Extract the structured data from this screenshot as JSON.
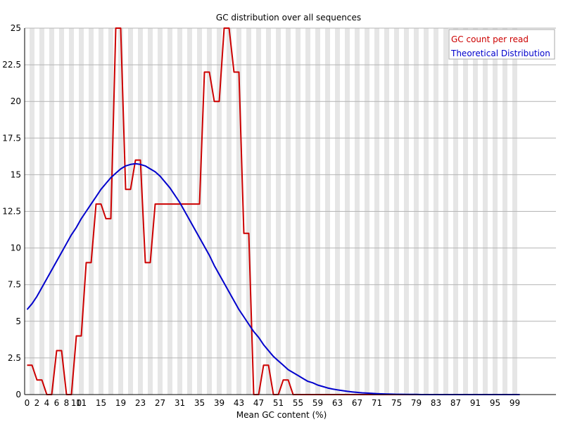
{
  "chart_data": {
    "type": "line",
    "title": "GC distribution over all sequences",
    "xlabel": "Mean GC content (%)",
    "ylabel": "",
    "xlim": [
      0,
      100
    ],
    "ylim": [
      0,
      25
    ],
    "yticks": [
      "0",
      "2.5",
      "5",
      "7.5",
      "10",
      "12.5",
      "15",
      "17.5",
      "20",
      "22.5",
      "25"
    ],
    "xticks": [
      "0",
      "2",
      "4",
      "6",
      "8",
      "10",
      "11",
      "15",
      "19",
      "23",
      "27",
      "31",
      "35",
      "39",
      "43",
      "47",
      "51",
      "55",
      "59",
      "63",
      "67",
      "71",
      "75",
      "79",
      "83",
      "87",
      "91",
      "95",
      "99"
    ],
    "grid": true,
    "legend_position": "top-right",
    "x": [
      0,
      1,
      2,
      3,
      4,
      5,
      6,
      7,
      8,
      9,
      10,
      11,
      12,
      13,
      14,
      15,
      16,
      17,
      18,
      19,
      20,
      21,
      22,
      23,
      24,
      25,
      26,
      27,
      28,
      29,
      30,
      31,
      32,
      33,
      34,
      35,
      36,
      37,
      38,
      39,
      40,
      41,
      42,
      43,
      44,
      45,
      46,
      47,
      48,
      49,
      50,
      51,
      52,
      53,
      54,
      55,
      56,
      57,
      58,
      59,
      60,
      61,
      62,
      63,
      64,
      65,
      66,
      67,
      68,
      69,
      70,
      71,
      72,
      73,
      74,
      75,
      76,
      77,
      78,
      79,
      80,
      81,
      82,
      83,
      84,
      85,
      86,
      87,
      88,
      89,
      90,
      91,
      92,
      93,
      94,
      95,
      96,
      97,
      98,
      99,
      100
    ],
    "series": [
      {
        "name": "GC count per read",
        "color": "#cc0000",
        "values": [
          2,
          2,
          1,
          1,
          0,
          0,
          3,
          3,
          0,
          0,
          4,
          4,
          9,
          9,
          13,
          13,
          12,
          12,
          25,
          25,
          14,
          14,
          16,
          16,
          9,
          9,
          13,
          13,
          13,
          13,
          13,
          13,
          13,
          13,
          13,
          13,
          22,
          22,
          20,
          20,
          25,
          25,
          22,
          22,
          11,
          11,
          0,
          0,
          2,
          2,
          0,
          0,
          1,
          1,
          0,
          0,
          0,
          0,
          0,
          0,
          0,
          0,
          0,
          0,
          0,
          0,
          0,
          0,
          0,
          0,
          0,
          0,
          0,
          0,
          0,
          0,
          0,
          0,
          0,
          0,
          0,
          0,
          0,
          0,
          0,
          0,
          0,
          0,
          0,
          0,
          0,
          0,
          0,
          0,
          0,
          0,
          0,
          0,
          0,
          0,
          0
        ]
      },
      {
        "name": "Theoretical Distribution",
        "color": "#0000cc",
        "values": [
          5.8,
          6.2,
          6.7,
          7.3,
          7.9,
          8.5,
          9.1,
          9.7,
          10.3,
          10.9,
          11.4,
          12.0,
          12.5,
          13.0,
          13.5,
          14.0,
          14.4,
          14.8,
          15.1,
          15.4,
          15.6,
          15.7,
          15.75,
          15.7,
          15.6,
          15.4,
          15.2,
          14.9,
          14.5,
          14.1,
          13.6,
          13.1,
          12.5,
          11.9,
          11.3,
          10.7,
          10.1,
          9.5,
          8.8,
          8.2,
          7.6,
          7.0,
          6.4,
          5.8,
          5.3,
          4.8,
          4.3,
          3.9,
          3.4,
          3.0,
          2.6,
          2.3,
          2.0,
          1.7,
          1.5,
          1.3,
          1.1,
          0.9,
          0.8,
          0.65,
          0.55,
          0.45,
          0.38,
          0.32,
          0.27,
          0.22,
          0.18,
          0.15,
          0.12,
          0.1,
          0.08,
          0.06,
          0.05,
          0.04,
          0.03,
          0.02,
          0.02,
          0.01,
          0.01,
          0.01,
          0.0,
          0.0,
          0.0,
          0.0,
          0.0,
          0.0,
          0.0,
          0.0,
          0.0,
          0.0,
          0.0,
          0.0,
          0.0,
          0.0,
          0.0,
          0.0,
          0.0,
          0.0,
          0.0,
          0.0,
          0.0
        ]
      }
    ]
  }
}
